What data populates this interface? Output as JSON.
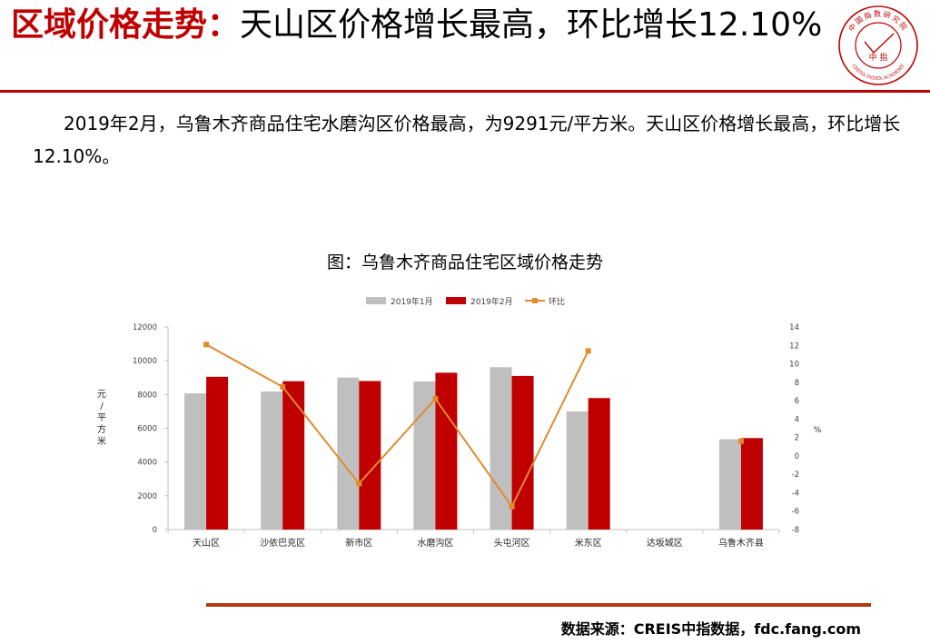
{
  "slide": {
    "title_highlight": "区域价格走势：",
    "title_rest": "天山区价格增长最高，环比增长12.10%",
    "body": "2019年2月，乌鲁木齐商品住宅水磨沟区价格最高，为9291元/平方米。天山区价格增长最高，环比增长12.10%。",
    "chart_heading": "图：乌鲁木齐商品住宅区域价格走势",
    "source": "数据来源：CREIS中指数据，fdc.fang.com"
  },
  "logo": {
    "ring_text": "中国指数研究院",
    "center_text": "中 指",
    "english_text": "CHINA INDEX ACADEMY"
  },
  "colors": {
    "accent": "#c00000",
    "jan_bar": "#bfbfbf",
    "feb_bar": "#c00000",
    "mom_line": "#e08a2e",
    "bottom_rule": "#b03a10"
  },
  "chart_data": {
    "type": "bar",
    "title": "图：乌鲁木齐商品住宅区域价格走势",
    "categories": [
      "天山区",
      "沙依巴克区",
      "新市区",
      "水磨沟区",
      "头屯河区",
      "米东区",
      "达坂城区",
      "乌鲁木齐县"
    ],
    "series": [
      {
        "name": "2019年1月",
        "kind": "bar",
        "axis": "left",
        "values": [
          8070,
          8180,
          9000,
          8770,
          9620,
          7000,
          null,
          5350
        ]
      },
      {
        "name": "2019年2月",
        "kind": "bar",
        "axis": "left",
        "values": [
          9050,
          8790,
          8800,
          9291,
          9100,
          7790,
          null,
          5420
        ]
      },
      {
        "name": "环比",
        "kind": "line",
        "axis": "right",
        "values": [
          12.1,
          7.5,
          -3.0,
          6.2,
          -5.5,
          11.4,
          null,
          1.6
        ]
      }
    ],
    "ylabel": "元/平方米",
    "ylim": [
      0,
      12000
    ],
    "yticks": [
      "0",
      "2000",
      "4000",
      "6000",
      "8000",
      "10000",
      "12000"
    ],
    "y2label": "%",
    "y2lim": [
      -8,
      14
    ],
    "y2ticks": [
      "-8",
      "-6",
      "-4",
      "-2",
      "0",
      "2",
      "4",
      "6",
      "8",
      "10",
      "12",
      "14"
    ],
    "legend_position": "top-center"
  }
}
